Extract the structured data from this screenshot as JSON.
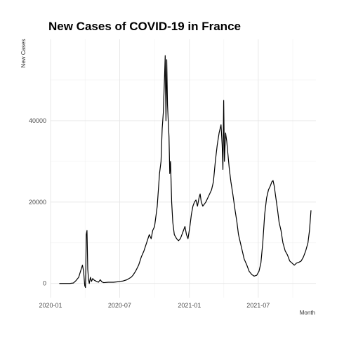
{
  "chart_data": {
    "type": "line",
    "title": "New Cases of COVID-19 in France",
    "xlabel": "Month",
    "ylabel": "New Cases",
    "grid": true,
    "legend": "none",
    "xlim": [
      "2020-01-01",
      "2021-11-30"
    ],
    "ylim": [
      -3500,
      60000
    ],
    "x_ticks": [
      {
        "date": "2020-01-01",
        "label": "2020-01"
      },
      {
        "date": "2020-07-01",
        "label": "2020-07"
      },
      {
        "date": "2021-01-01",
        "label": "2021-01"
      },
      {
        "date": "2021-07-01",
        "label": "2021-07"
      }
    ],
    "y_ticks": [
      {
        "value": 0,
        "label": "0"
      },
      {
        "value": 20000,
        "label": "20000"
      },
      {
        "value": 40000,
        "label": "40000"
      }
    ],
    "series": [
      {
        "color": "#000000",
        "points": [
          [
            "2020-01-24",
            0
          ],
          [
            "2020-02-20",
            0
          ],
          [
            "2020-03-01",
            100
          ],
          [
            "2020-03-08",
            700
          ],
          [
            "2020-03-15",
            1500
          ],
          [
            "2020-03-20",
            3000
          ],
          [
            "2020-03-25",
            4500
          ],
          [
            "2020-03-28",
            3000
          ],
          [
            "2020-03-31",
            -500
          ],
          [
            "2020-04-02",
            -1000
          ],
          [
            "2020-04-03",
            4000
          ],
          [
            "2020-04-04",
            12000
          ],
          [
            "2020-04-06",
            13000
          ],
          [
            "2020-04-08",
            3500
          ],
          [
            "2020-04-10",
            1000
          ],
          [
            "2020-04-12",
            0
          ],
          [
            "2020-04-15",
            1500
          ],
          [
            "2020-04-18",
            500
          ],
          [
            "2020-04-21",
            1200
          ],
          [
            "2020-04-25",
            800
          ],
          [
            "2020-05-01",
            500
          ],
          [
            "2020-05-06",
            300
          ],
          [
            "2020-05-11",
            900
          ],
          [
            "2020-05-15",
            400
          ],
          [
            "2020-05-20",
            200
          ],
          [
            "2020-06-01",
            300
          ],
          [
            "2020-06-15",
            300
          ],
          [
            "2020-06-25",
            400
          ],
          [
            "2020-07-01",
            500
          ],
          [
            "2020-07-10",
            600
          ],
          [
            "2020-07-20",
            900
          ],
          [
            "2020-07-31",
            1500
          ],
          [
            "2020-08-05",
            2000
          ],
          [
            "2020-08-12",
            3000
          ],
          [
            "2020-08-20",
            4500
          ],
          [
            "2020-08-27",
            6500
          ],
          [
            "2020-09-03",
            8000
          ],
          [
            "2020-09-10",
            10000
          ],
          [
            "2020-09-17",
            12000
          ],
          [
            "2020-09-22",
            11000
          ],
          [
            "2020-09-26",
            13000
          ],
          [
            "2020-10-01",
            14000
          ],
          [
            "2020-10-08",
            19000
          ],
          [
            "2020-10-14",
            27000
          ],
          [
            "2020-10-18",
            30000
          ],
          [
            "2020-10-21",
            38000
          ],
          [
            "2020-10-24",
            42000
          ],
          [
            "2020-10-27",
            50000
          ],
          [
            "2020-10-29",
            56000
          ],
          [
            "2020-10-31",
            40000
          ],
          [
            "2020-11-02",
            55000
          ],
          [
            "2020-11-04",
            44000
          ],
          [
            "2020-11-06",
            40000
          ],
          [
            "2020-11-08",
            36000
          ],
          [
            "2020-11-10",
            27000
          ],
          [
            "2020-11-12",
            30000
          ],
          [
            "2020-11-15",
            20000
          ],
          [
            "2020-11-18",
            15000
          ],
          [
            "2020-11-22",
            12000
          ],
          [
            "2020-11-28",
            11000
          ],
          [
            "2020-12-03",
            10500
          ],
          [
            "2020-12-08",
            11000
          ],
          [
            "2020-12-12",
            12000
          ],
          [
            "2020-12-16",
            13000
          ],
          [
            "2020-12-20",
            14000
          ],
          [
            "2020-12-24",
            12000
          ],
          [
            "2020-12-28",
            11000
          ],
          [
            "2021-01-02",
            14000
          ],
          [
            "2021-01-06",
            17000
          ],
          [
            "2021-01-10",
            19000
          ],
          [
            "2021-01-14",
            20000
          ],
          [
            "2021-01-18",
            20500
          ],
          [
            "2021-01-22",
            19000
          ],
          [
            "2021-01-26",
            21000
          ],
          [
            "2021-01-29",
            22000
          ],
          [
            "2021-02-01",
            20000
          ],
          [
            "2021-02-05",
            19000
          ],
          [
            "2021-02-09",
            19500
          ],
          [
            "2021-02-13",
            20000
          ],
          [
            "2021-02-18",
            21000
          ],
          [
            "2021-02-23",
            22000
          ],
          [
            "2021-02-28",
            23000
          ],
          [
            "2021-03-05",
            25000
          ],
          [
            "2021-03-10",
            30000
          ],
          [
            "2021-03-15",
            34000
          ],
          [
            "2021-03-20",
            37000
          ],
          [
            "2021-03-25",
            39000
          ],
          [
            "2021-03-28",
            34000
          ],
          [
            "2021-03-30",
            28000
          ],
          [
            "2021-04-01",
            45000
          ],
          [
            "2021-04-03",
            30000
          ],
          [
            "2021-04-06",
            37000
          ],
          [
            "2021-04-09",
            35000
          ],
          [
            "2021-04-12",
            32000
          ],
          [
            "2021-04-16",
            28000
          ],
          [
            "2021-04-20",
            25000
          ],
          [
            "2021-04-25",
            22000
          ],
          [
            "2021-05-01",
            18000
          ],
          [
            "2021-05-06",
            15000
          ],
          [
            "2021-05-10",
            12000
          ],
          [
            "2021-05-15",
            10000
          ],
          [
            "2021-05-20",
            8000
          ],
          [
            "2021-05-25",
            6000
          ],
          [
            "2021-06-01",
            4500
          ],
          [
            "2021-06-07",
            3000
          ],
          [
            "2021-06-14",
            2200
          ],
          [
            "2021-06-20",
            1800
          ],
          [
            "2021-06-27",
            2000
          ],
          [
            "2021-07-03",
            3000
          ],
          [
            "2021-07-08",
            5000
          ],
          [
            "2021-07-13",
            10000
          ],
          [
            "2021-07-18",
            17000
          ],
          [
            "2021-07-23",
            21000
          ],
          [
            "2021-07-28",
            23000
          ],
          [
            "2021-08-02",
            24000
          ],
          [
            "2021-08-06",
            25000
          ],
          [
            "2021-08-09",
            25300
          ],
          [
            "2021-08-12",
            24000
          ],
          [
            "2021-08-15",
            22000
          ],
          [
            "2021-08-18",
            20000
          ],
          [
            "2021-08-21",
            18000
          ],
          [
            "2021-08-25",
            15000
          ],
          [
            "2021-08-30",
            13000
          ],
          [
            "2021-09-04",
            10000
          ],
          [
            "2021-09-10",
            8000
          ],
          [
            "2021-09-16",
            7000
          ],
          [
            "2021-09-22",
            5500
          ],
          [
            "2021-09-28",
            5000
          ],
          [
            "2021-10-04",
            4500
          ],
          [
            "2021-10-10",
            5000
          ],
          [
            "2021-10-16",
            5200
          ],
          [
            "2021-10-22",
            5500
          ],
          [
            "2021-10-28",
            6500
          ],
          [
            "2021-11-03",
            8000
          ],
          [
            "2021-11-09",
            10000
          ],
          [
            "2021-11-13",
            13000
          ],
          [
            "2021-11-17",
            18000
          ]
        ]
      }
    ]
  }
}
